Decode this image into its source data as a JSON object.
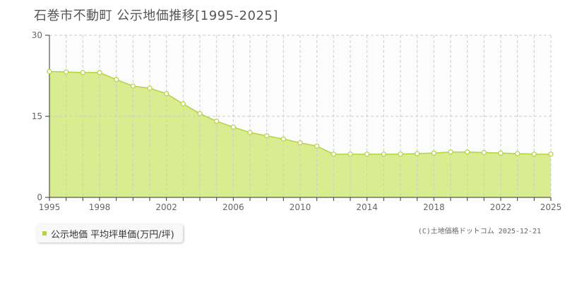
{
  "title": "石巻市不動町 公示地価推移[1995-2025]",
  "legend": {
    "label": "公示地価 平均坪単価(万円/坪)"
  },
  "credit": "(C)土地価格ドットコム 2025-12-21",
  "chart_data": {
    "type": "area",
    "title": "石巻市不動町 公示地価推移[1995-2025]",
    "xlabel": "",
    "ylabel": "",
    "xlim": [
      1995,
      2025
    ],
    "ylim": [
      0,
      30
    ],
    "y_ticks": [
      "0",
      "15",
      "30"
    ],
    "x_ticks": [
      "1995",
      "1998",
      "2002",
      "2006",
      "2010",
      "2014",
      "2018",
      "2022",
      "2025"
    ],
    "x_tick_values": [
      1995,
      1998,
      2002,
      2006,
      2010,
      2014,
      2018,
      2022,
      2025
    ],
    "grid": true,
    "legend_position": "bottom-left",
    "colors": {
      "fill": "#d9ec8f",
      "line": "#b5d33d",
      "point_stroke": "#b5d33d",
      "point_fill": "#ffffff",
      "grid": "#cccccc",
      "axis": "#333333"
    },
    "series": [
      {
        "name": "公示地価 平均坪単価(万円/坪)",
        "x": [
          1995,
          1996,
          1997,
          1998,
          1999,
          2000,
          2001,
          2002,
          2003,
          2004,
          2005,
          2006,
          2007,
          2008,
          2009,
          2010,
          2011,
          2012,
          2013,
          2014,
          2015,
          2016,
          2017,
          2018,
          2019,
          2020,
          2021,
          2022,
          2023,
          2024,
          2025
        ],
        "values": [
          23.3,
          23.2,
          23.1,
          23.1,
          21.8,
          20.6,
          20.2,
          19.2,
          17.3,
          15.5,
          14.1,
          13.0,
          12.0,
          11.4,
          10.8,
          10.1,
          9.5,
          8.0,
          8.0,
          8.0,
          8.0,
          8.0,
          8.1,
          8.2,
          8.4,
          8.4,
          8.3,
          8.2,
          8.1,
          8.0,
          8.0
        ]
      }
    ]
  }
}
